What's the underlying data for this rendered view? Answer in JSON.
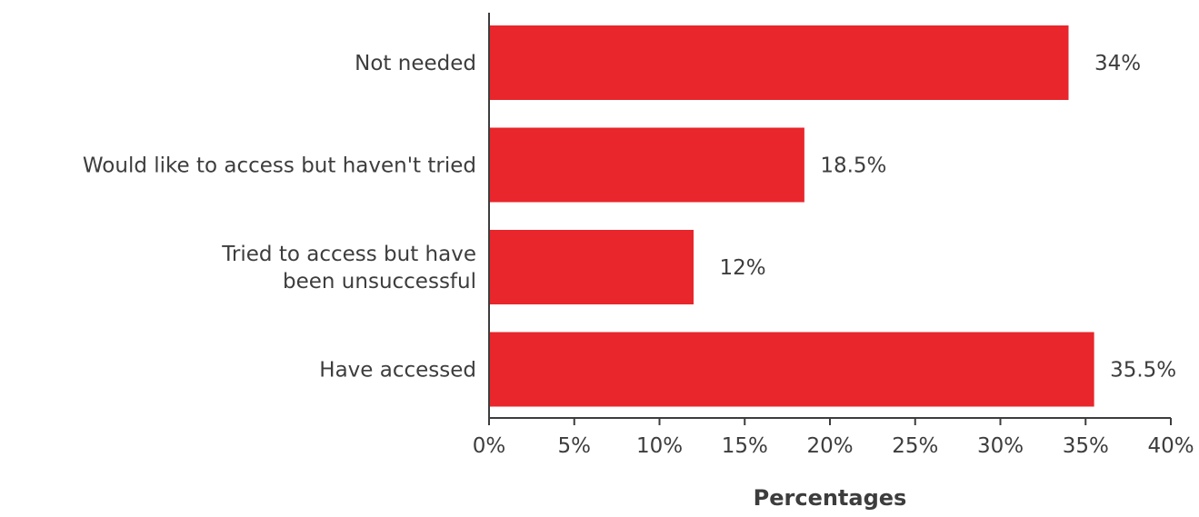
{
  "chart_data": {
    "type": "bar",
    "orientation": "horizontal",
    "categories": [
      "Not needed",
      "Would like to access but haven't tried",
      "Tried to access but have been unsuccessful",
      "Have accessed"
    ],
    "category_lines": [
      [
        "Not needed"
      ],
      [
        "Would like to access but haven't tried"
      ],
      [
        "Tried to access but have",
        "been unsuccessful"
      ],
      [
        "Have accessed"
      ]
    ],
    "values": [
      34,
      18.5,
      12,
      35.5
    ],
    "data_labels": [
      "34%",
      "18.5%",
      "12%",
      "35.5%"
    ],
    "xlabel": "Percentages",
    "xlim": [
      0,
      40
    ],
    "xticks": [
      0,
      5,
      10,
      15,
      20,
      25,
      30,
      35,
      40
    ],
    "xtick_labels": [
      "0%",
      "5%",
      "10%",
      "15%",
      "20%",
      "25%",
      "30%",
      "35%",
      "40%"
    ],
    "grid": false,
    "legend": "none",
    "colors": {
      "bar": "#e8262b",
      "text": "#3d3d3d",
      "axis": "#3d3d3d"
    }
  }
}
